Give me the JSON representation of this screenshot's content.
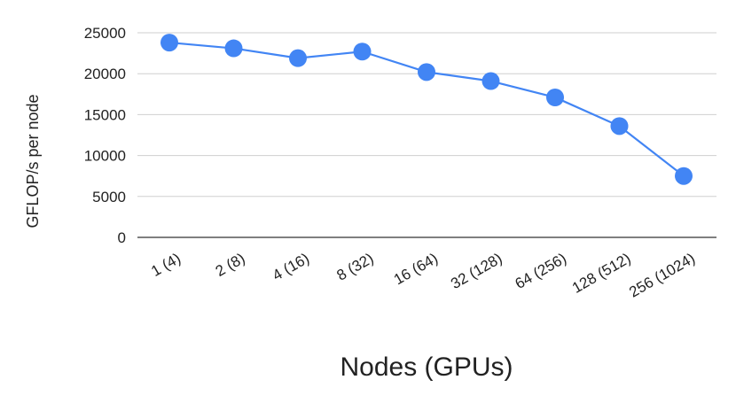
{
  "chart_data": {
    "type": "line",
    "title": "",
    "xlabel": "Nodes (GPUs)",
    "ylabel": "GFLOP/s per node",
    "categories": [
      "1 (4)",
      "2 (8)",
      "4 (16)",
      "8 (32)",
      "16 (64)",
      "32 (128)",
      "64 (256)",
      "128 (512)",
      "256 (1024)"
    ],
    "series": [
      {
        "values": [
          23800,
          23100,
          21900,
          22700,
          20200,
          19100,
          17100,
          13600,
          7500
        ],
        "color": "#4285f4"
      }
    ],
    "ylim": [
      0,
      25000
    ],
    "yticks": [
      0,
      5000,
      10000,
      15000,
      20000,
      25000
    ],
    "grid": true,
    "legend": "none"
  }
}
